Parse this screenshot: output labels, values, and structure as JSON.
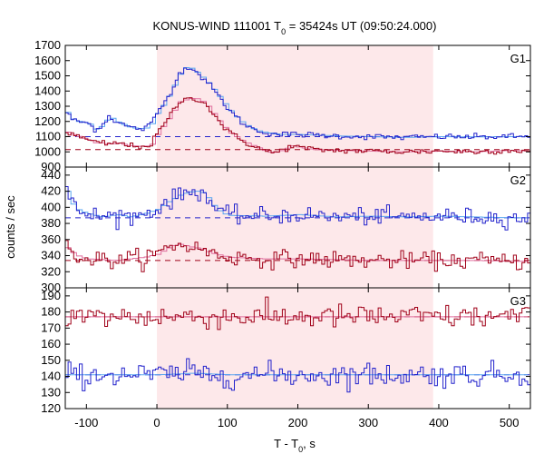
{
  "chart_data": {
    "type": "line",
    "title": "KONUS-WIND 111001 T",
    "title_sub": "0",
    "title_rest": " = 35424s UT (09:50:24.000)",
    "xlabel": "T - T",
    "xlabel_sub": "0",
    "xlabel_rest": ", s",
    "ylabel": "counts / sec",
    "xlim": [
      -130,
      530
    ],
    "x_ticks": [
      -100,
      0,
      100,
      200,
      300,
      400,
      500
    ],
    "x_tick_labels": [
      "-100",
      "0",
      "100",
      "200",
      "300",
      "400",
      "500"
    ],
    "shaded_interval": [
      0,
      392
    ],
    "colors": {
      "shade": "#fde8ea",
      "dark_blue": "#2222cc",
      "light_blue": "#5aa6f0",
      "dark_red": "#a00018",
      "pink": "#e06e9e"
    },
    "panels": [
      {
        "label": "G1",
        "ylim": [
          900,
          1700
        ],
        "y_ticks": [
          900,
          1000,
          1100,
          1200,
          1300,
          1400,
          1500,
          1600,
          1700
        ],
        "y_tick_labels": [
          "900",
          "1000",
          "1100",
          "1200",
          "1300",
          "1400",
          "1500",
          "1600",
          "1700"
        ],
        "series": [
          {
            "role": "blue",
            "background": 1100,
            "points": [
              [
                -130,
                1260
              ],
              [
                -120,
                1205
              ],
              [
                -100,
                1190
              ],
              [
                -90,
                1150
              ],
              [
                -80,
                1170
              ],
              [
                -70,
                1235
              ],
              [
                -60,
                1200
              ],
              [
                -40,
                1160
              ],
              [
                -20,
                1150
              ],
              [
                -10,
                1185
              ],
              [
                0,
                1270
              ],
              [
                10,
                1330
              ],
              [
                20,
                1420
              ],
              [
                30,
                1510
              ],
              [
                40,
                1565
              ],
              [
                50,
                1540
              ],
              [
                60,
                1500
              ],
              [
                70,
                1455
              ],
              [
                80,
                1400
              ],
              [
                90,
                1340
              ],
              [
                100,
                1280
              ],
              [
                110,
                1230
              ],
              [
                120,
                1190
              ],
              [
                130,
                1160
              ],
              [
                140,
                1140
              ],
              [
                150,
                1130
              ],
              [
                170,
                1115
              ],
              [
                200,
                1115
              ],
              [
                250,
                1105
              ],
              [
                300,
                1100
              ],
              [
                350,
                1095
              ],
              [
                400,
                1100
              ],
              [
                450,
                1098
              ],
              [
                500,
                1100
              ],
              [
                530,
                1100
              ]
            ]
          },
          {
            "role": "red",
            "background": 1015,
            "points": [
              [
                -130,
                1130
              ],
              [
                -120,
                1110
              ],
              [
                -100,
                1080
              ],
              [
                -90,
                1060
              ],
              [
                -80,
                1060
              ],
              [
                -70,
                1050
              ],
              [
                -60,
                1060
              ],
              [
                -40,
                1040
              ],
              [
                -20,
                1035
              ],
              [
                -10,
                1050
              ],
              [
                0,
                1130
              ],
              [
                10,
                1190
              ],
              [
                20,
                1260
              ],
              [
                30,
                1330
              ],
              [
                40,
                1345
              ],
              [
                50,
                1355
              ],
              [
                60,
                1340
              ],
              [
                70,
                1300
              ],
              [
                80,
                1240
              ],
              [
                90,
                1180
              ],
              [
                100,
                1130
              ],
              [
                110,
                1100
              ],
              [
                120,
                1070
              ],
              [
                130,
                1050
              ],
              [
                140,
                1030
              ],
              [
                150,
                1010
              ],
              [
                160,
                995
              ],
              [
                170,
                1000
              ],
              [
                180,
                1020
              ],
              [
                190,
                1040
              ],
              [
                200,
                1030
              ],
              [
                220,
                1015
              ],
              [
                250,
                1010
              ],
              [
                300,
                1005
              ],
              [
                350,
                1000
              ],
              [
                400,
                1005
              ],
              [
                450,
                1000
              ],
              [
                500,
                1010
              ],
              [
                530,
                1005
              ]
            ]
          }
        ]
      },
      {
        "label": "G2",
        "ylim": [
          300,
          450
        ],
        "y_ticks": [
          300,
          320,
          340,
          360,
          380,
          400,
          420,
          440
        ],
        "y_tick_labels": [
          "300",
          "320",
          "340",
          "360",
          "380",
          "400",
          "420",
          "440"
        ],
        "series": [
          {
            "role": "blue",
            "background": 387,
            "points": [
              [
                -130,
                420
              ],
              [
                -120,
                400
              ],
              [
                -110,
                395
              ],
              [
                -100,
                392
              ],
              [
                -80,
                388
              ],
              [
                -60,
                391
              ],
              [
                -40,
                388
              ],
              [
                -20,
                392
              ],
              [
                -10,
                395
              ],
              [
                0,
                398
              ],
              [
                10,
                405
              ],
              [
                20,
                410
              ],
              [
                30,
                415
              ],
              [
                40,
                418
              ],
              [
                50,
                420
              ],
              [
                60,
                420
              ],
              [
                70,
                412
              ],
              [
                80,
                400
              ],
              [
                90,
                393
              ],
              [
                100,
                390
              ],
              [
                150,
                389
              ],
              [
                200,
                391
              ],
              [
                250,
                388
              ],
              [
                300,
                389
              ],
              [
                350,
                388
              ],
              [
                400,
                389
              ],
              [
                450,
                388
              ],
              [
                500,
                387
              ],
              [
                530,
                387
              ]
            ]
          },
          {
            "role": "red",
            "background": 334,
            "points": [
              [
                -130,
                350
              ],
              [
                -120,
                342
              ],
              [
                -110,
                338
              ],
              [
                -100,
                336
              ],
              [
                -80,
                335
              ],
              [
                -60,
                334
              ],
              [
                -40,
                336
              ],
              [
                -20,
                338
              ],
              [
                -10,
                340
              ],
              [
                0,
                342
              ],
              [
                10,
                348
              ],
              [
                20,
                352
              ],
              [
                30,
                354
              ],
              [
                40,
                352
              ],
              [
                50,
                350
              ],
              [
                60,
                349
              ],
              [
                70,
                345
              ],
              [
                80,
                342
              ],
              [
                90,
                340
              ],
              [
                100,
                338
              ],
              [
                150,
                336
              ],
              [
                200,
                336
              ],
              [
                250,
                335
              ],
              [
                300,
                334
              ],
              [
                350,
                334
              ],
              [
                400,
                334
              ],
              [
                450,
                334
              ],
              [
                500,
                333
              ],
              [
                530,
                333
              ]
            ]
          }
        ]
      },
      {
        "label": "G3",
        "ylim": [
          120,
          195
        ],
        "y_ticks": [
          120,
          130,
          140,
          150,
          160,
          170,
          180,
          190
        ],
        "y_tick_labels": [
          "120",
          "130",
          "140",
          "150",
          "160",
          "170",
          "180",
          "190"
        ],
        "series": [
          {
            "role": "red",
            "background": 177,
            "points": [
              [
                -130,
                177
              ],
              [
                -100,
                177
              ],
              [
                -50,
                177
              ],
              [
                0,
                177
              ],
              [
                50,
                177
              ],
              [
                100,
                177
              ],
              [
                150,
                177
              ],
              [
                200,
                177
              ],
              [
                250,
                177
              ],
              [
                300,
                177
              ],
              [
                350,
                177
              ],
              [
                400,
                177
              ],
              [
                450,
                177
              ],
              [
                500,
                177
              ],
              [
                530,
                177
              ]
            ]
          },
          {
            "role": "blue",
            "background": 141,
            "points": [
              [
                -130,
                141
              ],
              [
                -100,
                141
              ],
              [
                -50,
                141
              ],
              [
                0,
                141
              ],
              [
                50,
                142
              ],
              [
                100,
                141
              ],
              [
                150,
                141
              ],
              [
                200,
                141
              ],
              [
                250,
                141
              ],
              [
                300,
                141
              ],
              [
                350,
                141
              ],
              [
                400,
                141
              ],
              [
                450,
                141
              ],
              [
                500,
                141
              ],
              [
                530,
                141
              ]
            ]
          }
        ]
      }
    ]
  }
}
